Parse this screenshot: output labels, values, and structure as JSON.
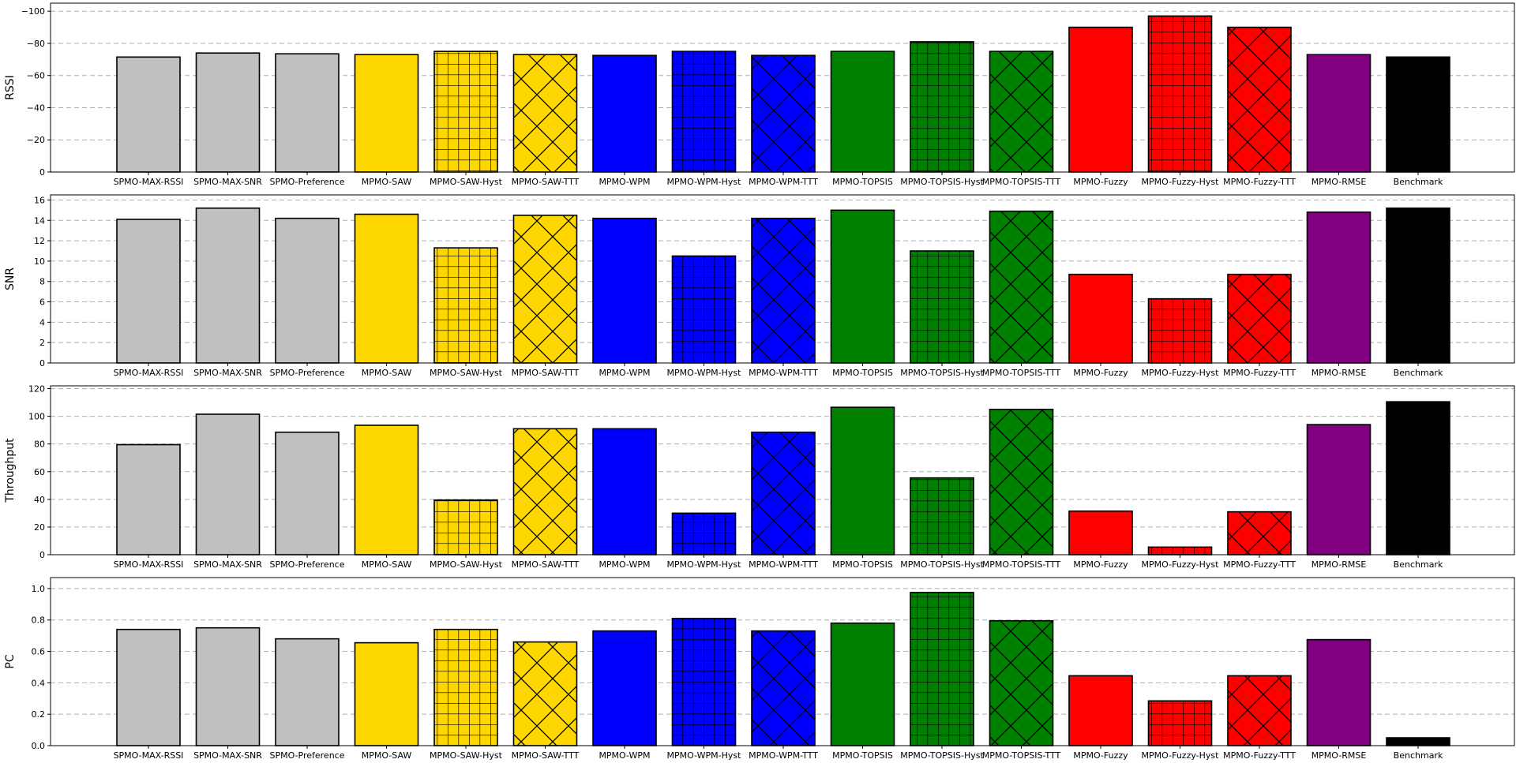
{
  "chart_data": {
    "type": "bar",
    "categories": [
      "SPMO-MAX-RSSI",
      "SPMO-MAX-SNR",
      "SPMO-Preference",
      "MPMO-SAW",
      "MPMO-SAW-Hyst",
      "MPMO-SAW-TTT",
      "MPMO-WPM",
      "MPMO-WPM-Hyst",
      "MPMO-WPM-TTT",
      "MPMO-TOPSIS",
      "MPMO-TOPSIS-Hyst",
      "MPMO-TOPSIS-TTT",
      "MPMO-Fuzzy",
      "MPMO-Fuzzy-Hyst",
      "MPMO-Fuzzy-TTT",
      "MPMO-RMSE",
      "Benchmark"
    ],
    "bar_colors": [
      "#c0c0c0",
      "#c0c0c0",
      "#c0c0c0",
      "#ffd700",
      "#ffd700",
      "#ffd700",
      "#0000ff",
      "#0000ff",
      "#0000ff",
      "#008000",
      "#008000",
      "#008000",
      "#ff0000",
      "#ff0000",
      "#ff0000",
      "#800080",
      "#000000"
    ],
    "bar_hatches": [
      "none",
      "none",
      "none",
      "none",
      "grid",
      "cross",
      "none",
      "grid",
      "cross",
      "none",
      "grid",
      "cross",
      "none",
      "grid",
      "cross",
      "none",
      "none"
    ],
    "grid": true,
    "panels": [
      {
        "ylabel": "RSSI",
        "ylim": [
          0,
          -105
        ],
        "yticks": [
          0,
          -20,
          -40,
          -60,
          -80,
          -100
        ],
        "ytick_labels": [
          "0",
          "−20",
          "−40",
          "−60",
          "−80",
          "−100"
        ],
        "values": [
          -71.5,
          -74,
          -73.5,
          -73,
          -75,
          -73,
          -72.5,
          -75,
          -72.5,
          -75,
          -81,
          -75,
          -90,
          -97,
          -90,
          -73,
          -71.5
        ]
      },
      {
        "ylabel": "SNR",
        "ylim": [
          0,
          16.5
        ],
        "yticks": [
          0,
          2,
          4,
          6,
          8,
          10,
          12,
          14,
          16
        ],
        "ytick_labels": [
          "0",
          "2",
          "4",
          "6",
          "8",
          "10",
          "12",
          "14",
          "16"
        ],
        "values": [
          14.1,
          15.2,
          14.2,
          14.6,
          11.3,
          14.5,
          14.2,
          10.5,
          14.2,
          15.0,
          11.0,
          14.9,
          8.7,
          6.3,
          8.7,
          14.8,
          15.2
        ]
      },
      {
        "ylabel": "Throughput",
        "ylim": [
          0,
          122
        ],
        "yticks": [
          0,
          20,
          40,
          60,
          80,
          100,
          120
        ],
        "ytick_labels": [
          "0",
          "20",
          "40",
          "60",
          "80",
          "100",
          "120"
        ],
        "values": [
          79.5,
          101.5,
          88.5,
          93.5,
          39.5,
          91,
          91,
          30,
          88.5,
          106.5,
          55.5,
          105,
          31.5,
          5.5,
          31,
          94,
          110.5
        ]
      },
      {
        "ylabel": "PC",
        "ylim": [
          0,
          1.07
        ],
        "yticks": [
          0.0,
          0.2,
          0.4,
          0.6,
          0.8,
          1.0
        ],
        "ytick_labels": [
          "0.0",
          "0.2",
          "0.4",
          "0.6",
          "0.8",
          "1.0"
        ],
        "values": [
          0.74,
          0.75,
          0.68,
          0.655,
          0.74,
          0.66,
          0.73,
          0.81,
          0.73,
          0.78,
          0.975,
          0.795,
          0.445,
          0.285,
          0.445,
          0.675,
          0.05
        ]
      }
    ]
  }
}
